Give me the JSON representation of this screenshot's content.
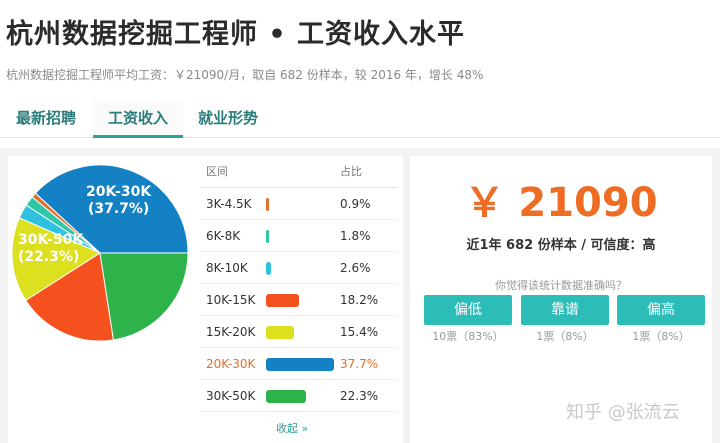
{
  "header": {
    "title": "杭州数据挖掘工程师 • 工资收入水平",
    "subtitle": "杭州数据挖掘工程师平均工资：￥21090/月，取自 682 份样本，较 2016 年，增长 48%"
  },
  "tabs": [
    {
      "label": "最新招聘",
      "active": false
    },
    {
      "label": "工资收入",
      "active": true
    },
    {
      "label": "就业形势",
      "active": false
    }
  ],
  "pie_labels": {
    "top": [
      "20K-30K",
      "(37.7%)"
    ],
    "left": [
      "30K-50K",
      "(22.3%)"
    ]
  },
  "table": {
    "headers": [
      "区间",
      "占比"
    ],
    "rows": [
      {
        "range": "3K-4.5K",
        "pct": "0.9%",
        "value": 0.9,
        "color": "#e0702a",
        "highlight": false
      },
      {
        "range": "6K-8K",
        "pct": "1.8%",
        "value": 1.8,
        "color": "#2ec7a8",
        "highlight": false
      },
      {
        "range": "8K-10K",
        "pct": "2.6%",
        "value": 2.6,
        "color": "#2ec2e0",
        "highlight": false
      },
      {
        "range": "10K-15K",
        "pct": "18.2%",
        "value": 18.2,
        "color": "#f4511e",
        "highlight": false
      },
      {
        "range": "15K-20K",
        "pct": "15.4%",
        "value": 15.4,
        "color": "#dde01f",
        "highlight": false
      },
      {
        "range": "20K-30K",
        "pct": "37.7%",
        "value": 37.7,
        "color": "#1481c4",
        "highlight": true
      },
      {
        "range": "30K-50K",
        "pct": "22.3%",
        "value": 22.3,
        "color": "#2eb24a",
        "highlight": false
      }
    ],
    "collapse_label": "收起 »"
  },
  "summary": {
    "salary": "￥ 21090",
    "samples": "近1年 682 份样本 / 可信度：高",
    "question": "你觉得该统计数据准确吗？",
    "votes": [
      {
        "label": "偏低",
        "count": "10票（83%）"
      },
      {
        "label": "靠谱",
        "count": "1票（8%）"
      },
      {
        "label": "偏高",
        "count": "1票（8%）"
      }
    ]
  },
  "watermark": "知乎 @张流云"
}
